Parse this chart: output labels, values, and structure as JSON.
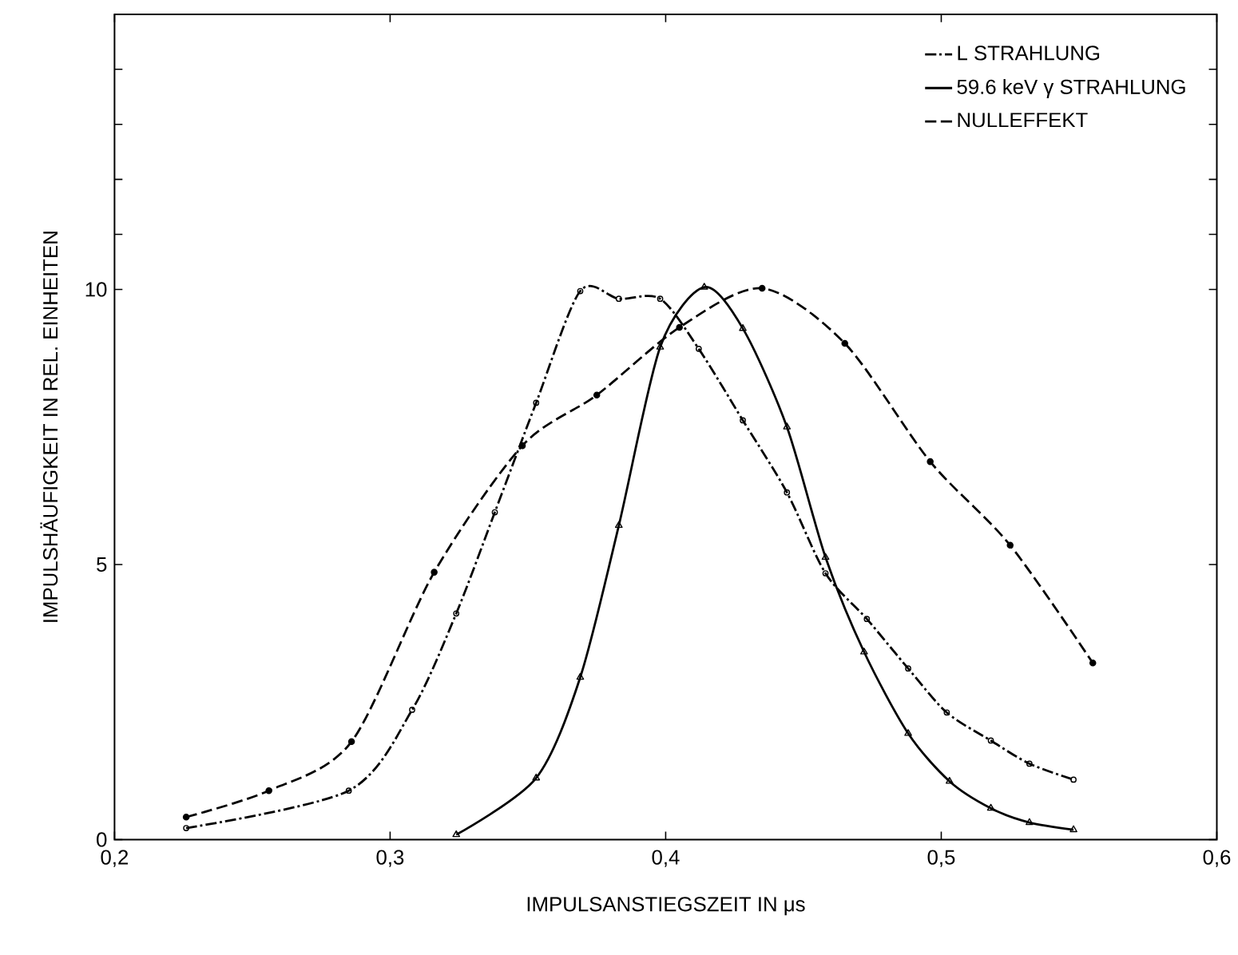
{
  "chart_data": {
    "type": "line",
    "xlabel": "IMPULSANSTIEGSZEIT IN μs",
    "ylabel": "IMPULSHÄUFIGKEIT IN REL. EINHEITEN",
    "xlim": [
      0.2,
      0.6
    ],
    "ylim": [
      0,
      15
    ],
    "xticks": [
      {
        "value": 0.2,
        "label": "0,2"
      },
      {
        "value": 0.3,
        "label": "0,3"
      },
      {
        "value": 0.4,
        "label": "0,4"
      },
      {
        "value": 0.5,
        "label": "0,5"
      },
      {
        "value": 0.6,
        "label": "0,6"
      }
    ],
    "yticks": [
      0,
      5,
      10,
      {
        "value": 11,
        "label": null
      },
      {
        "value": 12,
        "label": null
      },
      {
        "value": 13,
        "label": null
      },
      {
        "value": 14,
        "label": null
      }
    ],
    "grid": false,
    "legend": "top right",
    "series": [
      {
        "name": "L STRAHLUNG",
        "color": "#000000",
        "line_style": "dashdot",
        "marker": "open circle",
        "x": [
          0.226,
          0.285,
          0.308,
          0.324,
          0.338,
          0.353,
          0.369,
          0.383,
          0.398,
          0.412,
          0.428,
          0.444,
          0.458,
          0.473,
          0.488,
          0.502,
          0.518,
          0.532,
          0.548
        ],
        "values": [
          0.21,
          0.89,
          2.36,
          4.11,
          5.95,
          7.94,
          9.97,
          9.83,
          9.83,
          8.92,
          7.62,
          6.31,
          4.84,
          4.01,
          3.11,
          2.31,
          1.8,
          1.38,
          1.09
        ]
      },
      {
        "name": "59.6 keV γ STRAHLUNG",
        "color": "#000000",
        "line_style": "solid",
        "marker": "triangle",
        "x": [
          0.324,
          0.353,
          0.369,
          0.383,
          0.398,
          0.414,
          0.428,
          0.444,
          0.458,
          0.472,
          0.488,
          0.503,
          0.518,
          0.532,
          0.548
        ],
        "values": [
          0.09,
          1.12,
          2.95,
          5.71,
          8.95,
          10.04,
          9.29,
          7.5,
          5.13,
          3.41,
          1.93,
          1.06,
          0.57,
          0.31,
          0.18
        ]
      },
      {
        "name": "NULLEFFEKT",
        "color": "#000000",
        "line_style": "dashed",
        "marker": "circle",
        "x": [
          0.226,
          0.256,
          0.286,
          0.316,
          0.348,
          0.375,
          0.405,
          0.435,
          0.465,
          0.496,
          0.525,
          0.555
        ],
        "values": [
          0.41,
          0.89,
          1.78,
          4.86,
          7.16,
          8.08,
          9.31,
          10.02,
          9.02,
          6.87,
          5.35,
          3.21
        ]
      }
    ]
  }
}
